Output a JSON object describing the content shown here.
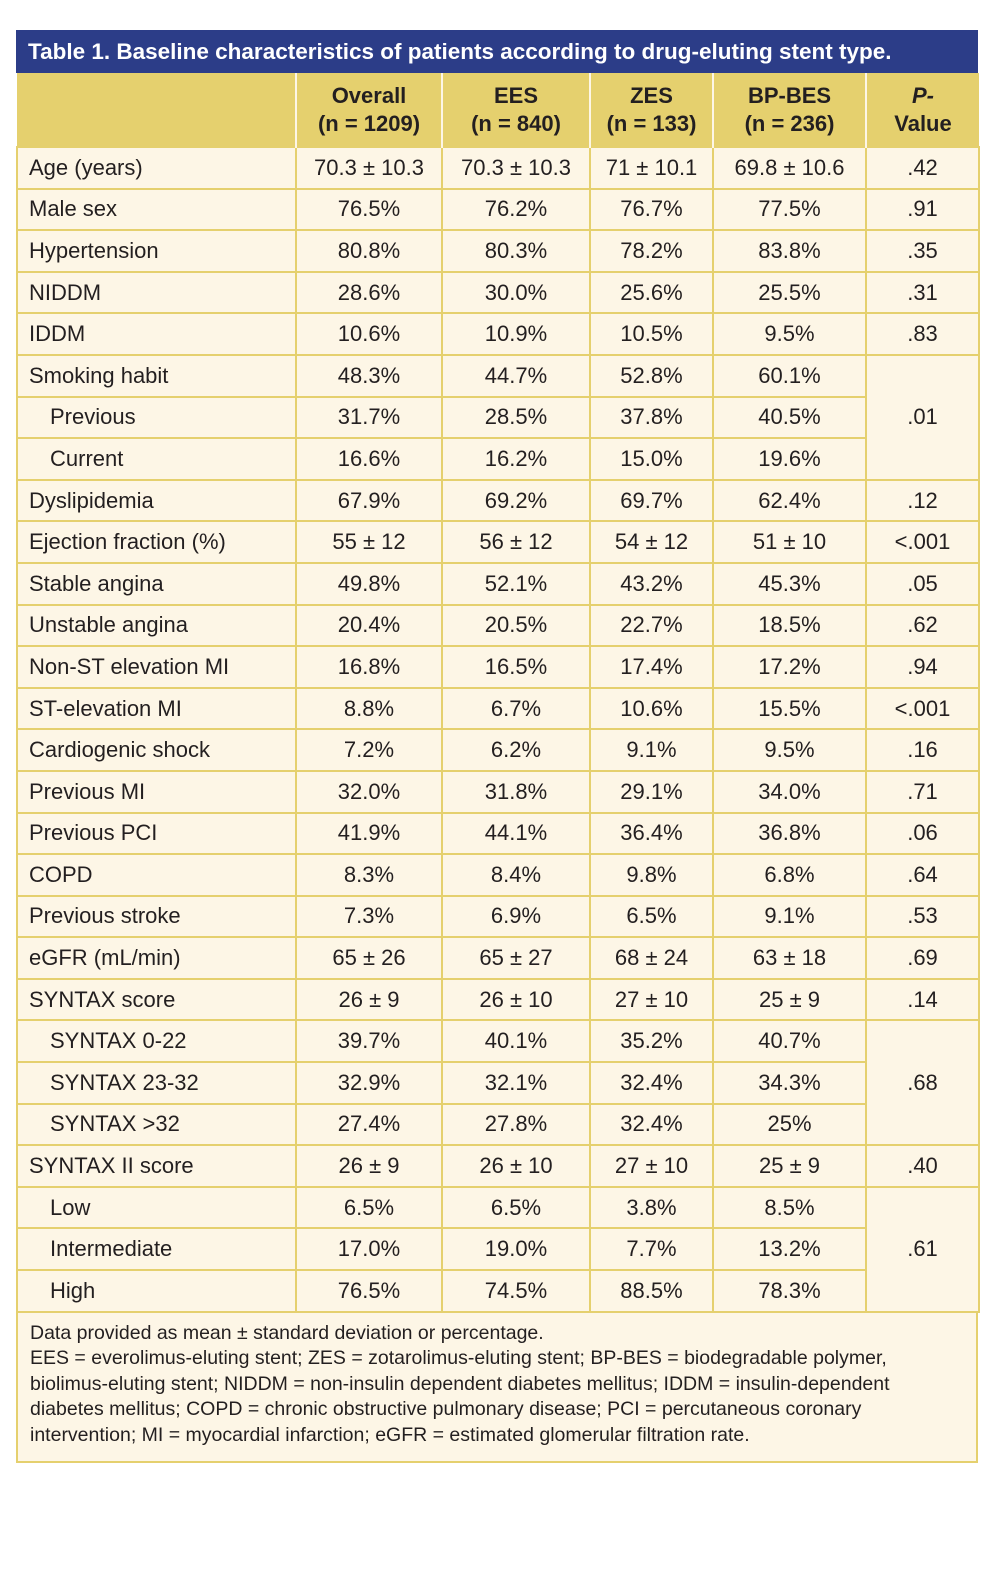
{
  "title": "Table 1. Baseline characteristics of patients according to drug-eluting stent type.",
  "headers": [
    {
      "line1": "",
      "line2": ""
    },
    {
      "line1": "Overall",
      "line2": "(n = 1209)"
    },
    {
      "line1": "EES",
      "line2": "(n = 840)"
    },
    {
      "line1": "ZES",
      "line2": "(n = 133)"
    },
    {
      "line1": "BP-BES",
      "line2": "(n = 236)"
    },
    {
      "line1": "P-",
      "line2": "Value",
      "italic_line1": true
    }
  ],
  "rows": [
    {
      "label": "Age (years)",
      "values": [
        "70.3 ± 10.3",
        "70.3 ± 10.3",
        "71 ± 10.1",
        "69.8 ± 10.6"
      ],
      "p": ".42"
    },
    {
      "label": "Male sex",
      "values": [
        "76.5%",
        "76.2%",
        "76.7%",
        "77.5%"
      ],
      "p": ".91"
    },
    {
      "label": "Hypertension",
      "values": [
        "80.8%",
        "80.3%",
        "78.2%",
        "83.8%"
      ],
      "p": ".35"
    },
    {
      "label": "NIDDM",
      "values": [
        "28.6%",
        "30.0%",
        "25.6%",
        "25.5%"
      ],
      "p": ".31"
    },
    {
      "label": "IDDM",
      "values": [
        "10.6%",
        "10.9%",
        "10.5%",
        "9.5%"
      ],
      "p": ".83"
    },
    {
      "label": "Smoking habit",
      "values": [
        "48.3%",
        "44.7%",
        "52.8%",
        "60.1%"
      ],
      "p": ".01",
      "pspan": 3
    },
    {
      "label": "Previous",
      "indent": true,
      "values": [
        "31.7%",
        "28.5%",
        "37.8%",
        "40.5%"
      ]
    },
    {
      "label": "Current",
      "indent": true,
      "values": [
        "16.6%",
        "16.2%",
        "15.0%",
        "19.6%"
      ]
    },
    {
      "label": "Dyslipidemia",
      "values": [
        "67.9%",
        "69.2%",
        "69.7%",
        "62.4%"
      ],
      "p": ".12"
    },
    {
      "label": "Ejection fraction (%)",
      "values": [
        "55 ± 12",
        "56 ± 12",
        "54 ± 12",
        "51 ± 10"
      ],
      "p": "<.001"
    },
    {
      "label": "Stable angina",
      "values": [
        "49.8%",
        "52.1%",
        "43.2%",
        "45.3%"
      ],
      "p": ".05"
    },
    {
      "label": "Unstable angina",
      "values": [
        "20.4%",
        "20.5%",
        "22.7%",
        "18.5%"
      ],
      "p": ".62"
    },
    {
      "label": "Non-ST elevation MI",
      "values": [
        "16.8%",
        "16.5%",
        "17.4%",
        "17.2%"
      ],
      "p": ".94"
    },
    {
      "label": "ST-elevation MI",
      "values": [
        "8.8%",
        "6.7%",
        "10.6%",
        "15.5%"
      ],
      "p": "<.001"
    },
    {
      "label": "Cardiogenic shock",
      "values": [
        "7.2%",
        "6.2%",
        "9.1%",
        "9.5%"
      ],
      "p": ".16"
    },
    {
      "label": "Previous MI",
      "values": [
        "32.0%",
        "31.8%",
        "29.1%",
        "34.0%"
      ],
      "p": ".71"
    },
    {
      "label": "Previous PCI",
      "values": [
        "41.9%",
        "44.1%",
        "36.4%",
        "36.8%"
      ],
      "p": ".06"
    },
    {
      "label": "COPD",
      "values": [
        "8.3%",
        "8.4%",
        "9.8%",
        "6.8%"
      ],
      "p": ".64"
    },
    {
      "label": "Previous stroke",
      "values": [
        "7.3%",
        "6.9%",
        "6.5%",
        "9.1%"
      ],
      "p": ".53"
    },
    {
      "label": "eGFR (mL/min)",
      "values": [
        "65 ± 26",
        "65 ± 27",
        "68 ± 24",
        "63 ± 18"
      ],
      "p": ".69"
    },
    {
      "label": "SYNTAX score",
      "values": [
        "26 ± 9",
        "26 ± 10",
        "27 ± 10",
        "25 ± 9"
      ],
      "p": ".14"
    },
    {
      "label": "SYNTAX 0-22",
      "indent": true,
      "values": [
        "39.7%",
        "40.1%",
        "35.2%",
        "40.7%"
      ],
      "p": ".68",
      "pspan": 3
    },
    {
      "label": "SYNTAX 23-32",
      "indent": true,
      "values": [
        "32.9%",
        "32.1%",
        "32.4%",
        "34.3%"
      ]
    },
    {
      "label": "SYNTAX >32",
      "indent": true,
      "values": [
        "27.4%",
        "27.8%",
        "32.4%",
        "25%"
      ]
    },
    {
      "label": "SYNTAX II score",
      "values": [
        "26 ± 9",
        "26 ± 10",
        "27 ± 10",
        "25 ± 9"
      ],
      "p": ".40"
    },
    {
      "label": "Low",
      "indent": true,
      "values": [
        "6.5%",
        "6.5%",
        "3.8%",
        "8.5%"
      ],
      "p": ".61",
      "pspan": 3
    },
    {
      "label": "Intermediate",
      "indent": true,
      "values": [
        "17.0%",
        "19.0%",
        "7.7%",
        "13.2%"
      ]
    },
    {
      "label": "High",
      "indent": true,
      "values": [
        "76.5%",
        "74.5%",
        "88.5%",
        "78.3%"
      ]
    }
  ],
  "footnotes": [
    "Data provided as mean ± standard deviation or percentage.",
    "EES = everolimus-eluting stent; ZES = zotarolimus-eluting stent; BP-BES = biodegradable polymer, biolimus-eluting stent; NIDDM = non-insulin dependent diabetes mellitus; IDDM = insulin-dependent diabetes mellitus; COPD = chronic obstructive pulmonary disease; PCI = percutaneous coronary intervention; MI = myocardial infarction; eGFR = estimated glomerular filtration rate."
  ],
  "colors": {
    "title_bg": "#2c3d88",
    "header_bg": "#e5d06e",
    "cell_bg": "#fdf6e6"
  }
}
